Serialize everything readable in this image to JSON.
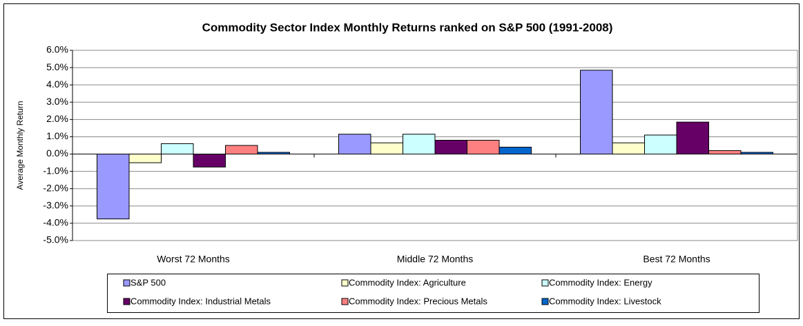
{
  "chart_data": {
    "type": "bar",
    "title": "Commodity Sector Index Monthly Returns ranked on S&P 500 (1991-2008)",
    "y_label": "Average Monthly Return",
    "categories": [
      "Worst 72 Months",
      "Middle 72 Months",
      "Best 72 Months"
    ],
    "series": [
      {
        "name": "S&P 500",
        "color": "#9999ff",
        "values": [
          -3.75,
          1.15,
          4.85
        ]
      },
      {
        "name": "Commodity Index: Agriculture",
        "color": "#ffffcc",
        "values": [
          -0.5,
          0.65,
          0.65
        ]
      },
      {
        "name": "Commodity Index: Energy",
        "color": "#ccffff",
        "values": [
          0.6,
          1.15,
          1.1
        ]
      },
      {
        "name": "Commodity Index: Industrial Metals",
        "color": "#660066",
        "values": [
          -0.75,
          0.8,
          1.85
        ]
      },
      {
        "name": "Commodity Index: Precious Metals",
        "color": "#ff8080",
        "values": [
          0.5,
          0.8,
          0.2
        ]
      },
      {
        "name": "Commodity Index: Livestock",
        "color": "#0066cc",
        "values": [
          0.1,
          0.4,
          0.1
        ]
      }
    ],
    "ylim": [
      -5,
      6
    ],
    "yticks": [
      {
        "value": 6,
        "label": "6.0%"
      },
      {
        "value": 5,
        "label": "5.0%"
      },
      {
        "value": 4,
        "label": "4.0%"
      },
      {
        "value": 3,
        "label": "3.0%"
      },
      {
        "value": 2,
        "label": "2.0%"
      },
      {
        "value": 1,
        "label": "1.0%"
      },
      {
        "value": 0,
        "label": "0.0%"
      },
      {
        "value": -1,
        "label": "-1.0%"
      },
      {
        "value": -2,
        "label": "-2.0%"
      },
      {
        "value": -3,
        "label": "-3.0%"
      },
      {
        "value": -4,
        "label": "-4.0%"
      },
      {
        "value": -5,
        "label": "-5.0%"
      }
    ],
    "grid": true,
    "legend": "bottom"
  }
}
